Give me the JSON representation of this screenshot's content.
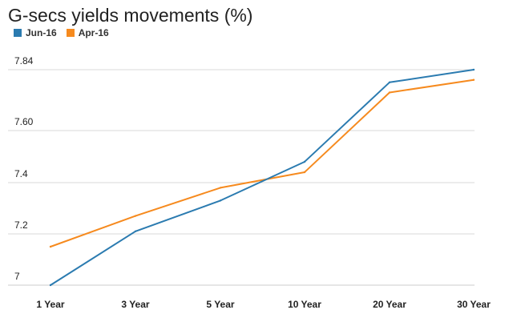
{
  "chart_data": {
    "type": "line",
    "title": "G-secs yields movements (%)",
    "categories": [
      "1 Year",
      "3 Year",
      "5 Year",
      "10 Year",
      "20 Year",
      "30 Year"
    ],
    "yticks": [
      "7",
      "7.2",
      "7.4",
      "7.60",
      "7.84"
    ],
    "series": [
      {
        "name": "Jun-16",
        "color": "#2b7bb0",
        "values": [
          7.0,
          7.21,
          7.33,
          7.48,
          7.79,
          7.84
        ]
      },
      {
        "name": "Apr-16",
        "color": "#f68a1e",
        "values": [
          7.15,
          7.27,
          7.38,
          7.44,
          7.75,
          7.8
        ]
      }
    ],
    "xlabel": "",
    "ylabel": "",
    "grid": true,
    "legend": "top-left"
  }
}
